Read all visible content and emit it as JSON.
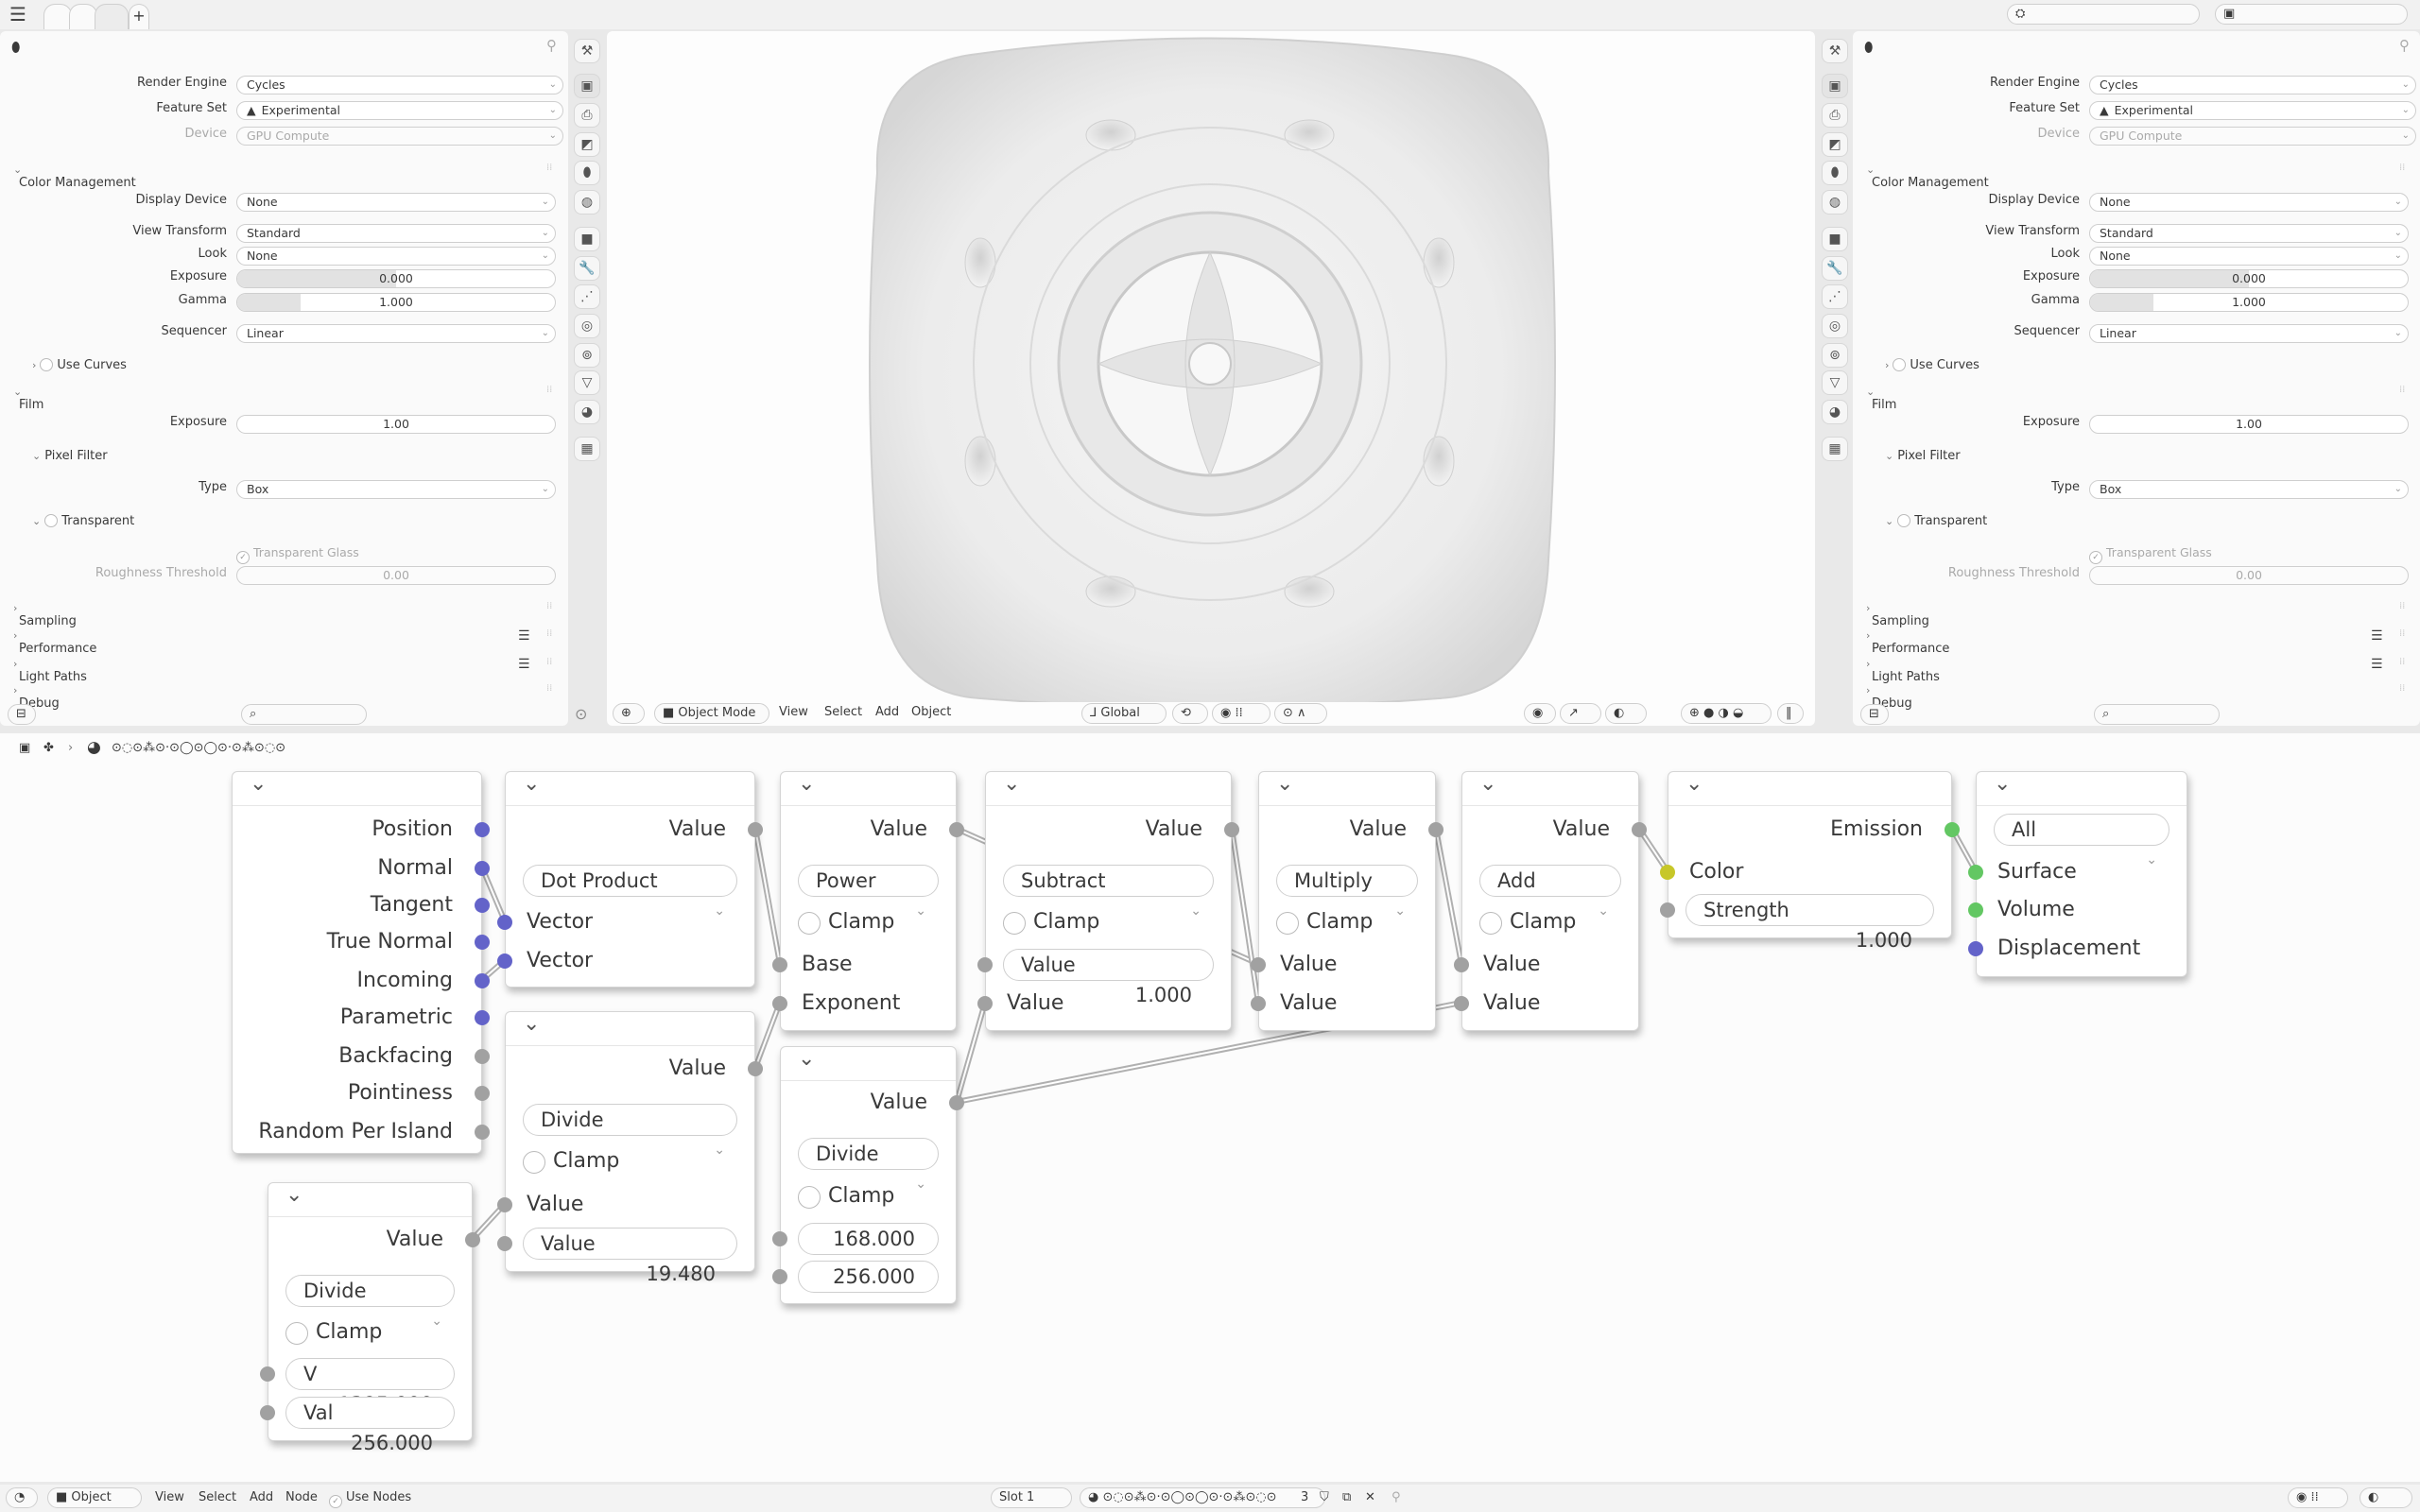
{
  "topbar": {
    "add_tab": "+"
  },
  "properties": {
    "rows": [
      {
        "type": "dropdown-wide",
        "label": "Render Engine",
        "value": "Cycles"
      },
      {
        "type": "dropdown-warn",
        "label": "Feature Set",
        "value": "Experimental"
      },
      {
        "type": "dropdown-disabled",
        "label": "Device",
        "value": "GPU Compute"
      },
      {
        "type": "section-open",
        "label": "Color Management"
      },
      {
        "type": "dropdown",
        "label": "Display Device",
        "value": "None"
      },
      {
        "type": "dropdown",
        "label": "View Transform",
        "value": "Standard"
      },
      {
        "type": "dropdown",
        "label": "Look",
        "value": "None"
      },
      {
        "type": "slider",
        "label": "Exposure",
        "value": "0.000",
        "fill": 0.5
      },
      {
        "type": "slider",
        "label": "Gamma",
        "value": "1.000",
        "fill": 0.2
      },
      {
        "type": "dropdown",
        "label": "Sequencer",
        "value": "Linear"
      },
      {
        "type": "subsection-closed-check",
        "label": "Use Curves"
      },
      {
        "type": "section-open",
        "label": "Film"
      },
      {
        "type": "number",
        "label": "Exposure",
        "value": "1.00"
      },
      {
        "type": "subsection-open",
        "label": "Pixel Filter"
      },
      {
        "type": "dropdown",
        "label": "Type",
        "value": "Box"
      },
      {
        "type": "subsection-open-check",
        "label": "Transparent"
      },
      {
        "type": "check-disabled",
        "label": "Transparent Glass",
        "checked": true
      },
      {
        "type": "number-disabled",
        "label": "Roughness Threshold",
        "value": "0.00"
      },
      {
        "type": "section-closed",
        "label": "Sampling"
      },
      {
        "type": "section-closed-list",
        "label": "Performance"
      },
      {
        "type": "section-closed-list",
        "label": "Light Paths"
      },
      {
        "type": "section-closed",
        "label": "Debug"
      }
    ]
  },
  "viewport_header": {
    "mode": "Object Mode",
    "menus": [
      "View",
      "Select",
      "Add",
      "Object"
    ],
    "orientation": "Global"
  },
  "node_header": {
    "material_name": "⊙◌⊙⁂⊙·⊙◯⊙◯⊙·⊙⁂⊙◌⊙"
  },
  "colors": {
    "vector_socket": "#6363c9",
    "value_socket": "#a1a1a1",
    "color_socket": "#c7c729",
    "shader_socket": "#63c763"
  },
  "nodes": [
    {
      "name": "geometry",
      "rows": [
        {
          "type": "out",
          "label": "Position",
          "socket": "vector"
        },
        {
          "type": "out",
          "label": "Normal",
          "socket": "vector"
        },
        {
          "type": "out",
          "label": "Tangent",
          "socket": "vector"
        },
        {
          "type": "out",
          "label": "True Normal",
          "socket": "vector"
        },
        {
          "type": "out",
          "label": "Incoming",
          "socket": "vector"
        },
        {
          "type": "out",
          "label": "Parametric",
          "socket": "vector"
        },
        {
          "type": "out",
          "label": "Backfacing",
          "socket": "value"
        },
        {
          "type": "out",
          "label": "Pointiness",
          "socket": "value"
        },
        {
          "type": "out",
          "label": "Random Per Island",
          "socket": "value"
        }
      ]
    },
    {
      "name": "vector-math-dot-product",
      "rows": [
        {
          "type": "out",
          "label": "Value",
          "socket": "value"
        },
        {
          "type": "dropdown",
          "label": "Dot Product"
        },
        {
          "type": "in",
          "label": "Vector",
          "socket": "vector"
        },
        {
          "type": "in",
          "label": "Vector",
          "socket": "vector"
        }
      ]
    },
    {
      "name": "math-divide-a",
      "rows": [
        {
          "type": "out",
          "label": "Value",
          "socket": "value"
        },
        {
          "type": "dropdown",
          "label": "Divide"
        },
        {
          "type": "check",
          "label": "Clamp"
        },
        {
          "type": "in",
          "label": "Value",
          "socket": "value"
        },
        {
          "type": "field",
          "label": "Value",
          "value": "19.480",
          "socket": "value"
        }
      ]
    },
    {
      "name": "math-divide-b",
      "rows": [
        {
          "type": "out",
          "label": "Value",
          "socket": "value"
        },
        {
          "type": "dropdown",
          "label": "Divide"
        },
        {
          "type": "check",
          "label": "Clamp"
        },
        {
          "type": "field",
          "label": "V",
          "value": "1395.000",
          "socket": "value"
        },
        {
          "type": "field",
          "label": "Val",
          "value": "256.000",
          "socket": "value"
        }
      ]
    },
    {
      "name": "math-power",
      "rows": [
        {
          "type": "out",
          "label": "Value",
          "socket": "value"
        },
        {
          "type": "dropdown",
          "label": "Power"
        },
        {
          "type": "check",
          "label": "Clamp"
        },
        {
          "type": "in",
          "label": "Base",
          "socket": "value"
        },
        {
          "type": "in",
          "label": "Exponent",
          "socket": "value"
        }
      ]
    },
    {
      "name": "math-divide-c",
      "rows": [
        {
          "type": "out",
          "label": "Value",
          "socket": "value"
        },
        {
          "type": "dropdown",
          "label": "Divide"
        },
        {
          "type": "check",
          "label": "Clamp"
        },
        {
          "type": "field",
          "label": "",
          "value": "168.000",
          "socket": "value"
        },
        {
          "type": "field",
          "label": "",
          "value": "256.000",
          "socket": "value"
        }
      ]
    },
    {
      "name": "math-subtract",
      "rows": [
        {
          "type": "out",
          "label": "Value",
          "socket": "value"
        },
        {
          "type": "dropdown",
          "label": "Subtract"
        },
        {
          "type": "check",
          "label": "Clamp"
        },
        {
          "type": "field",
          "label": "Value",
          "value": "1.000",
          "socket": "value"
        },
        {
          "type": "in",
          "label": "Value",
          "socket": "value"
        }
      ]
    },
    {
      "name": "math-multiply",
      "rows": [
        {
          "type": "out",
          "label": "Value",
          "socket": "value"
        },
        {
          "type": "dropdown",
          "label": "Multiply"
        },
        {
          "type": "check",
          "label": "Clamp"
        },
        {
          "type": "in",
          "label": "Value",
          "socket": "value"
        },
        {
          "type": "in",
          "label": "Value",
          "socket": "value"
        }
      ]
    },
    {
      "name": "math-add",
      "rows": [
        {
          "type": "out",
          "label": "Value",
          "socket": "value"
        },
        {
          "type": "dropdown",
          "label": "Add"
        },
        {
          "type": "check",
          "label": "Clamp"
        },
        {
          "type": "in",
          "label": "Value",
          "socket": "value"
        },
        {
          "type": "in",
          "label": "Value",
          "socket": "value"
        }
      ]
    },
    {
      "name": "emission",
      "rows": [
        {
          "type": "out",
          "label": "Emission",
          "socket": "shader"
        },
        {
          "type": "in",
          "label": "Color",
          "socket": "color"
        },
        {
          "type": "field",
          "label": "Strength",
          "value": "1.000",
          "socket": "value"
        }
      ]
    },
    {
      "name": "material-output",
      "rows": [
        {
          "type": "dropdown",
          "label": "All"
        },
        {
          "type": "in",
          "label": "Surface",
          "socket": "shader"
        },
        {
          "type": "in",
          "label": "Volume",
          "socket": "shader"
        },
        {
          "type": "in",
          "label": "Displacement",
          "socket": "vector"
        }
      ]
    }
  ],
  "footer": {
    "editor_mode": "Object",
    "menus": [
      "View",
      "Select",
      "Add",
      "Node"
    ],
    "use_nodes": "Use Nodes",
    "slot": "Slot 1",
    "material_name": "⊙◌⊙⁂⊙·⊙◯⊙◯⊙·⊙⁂⊙◌⊙",
    "user_count": "3"
  }
}
